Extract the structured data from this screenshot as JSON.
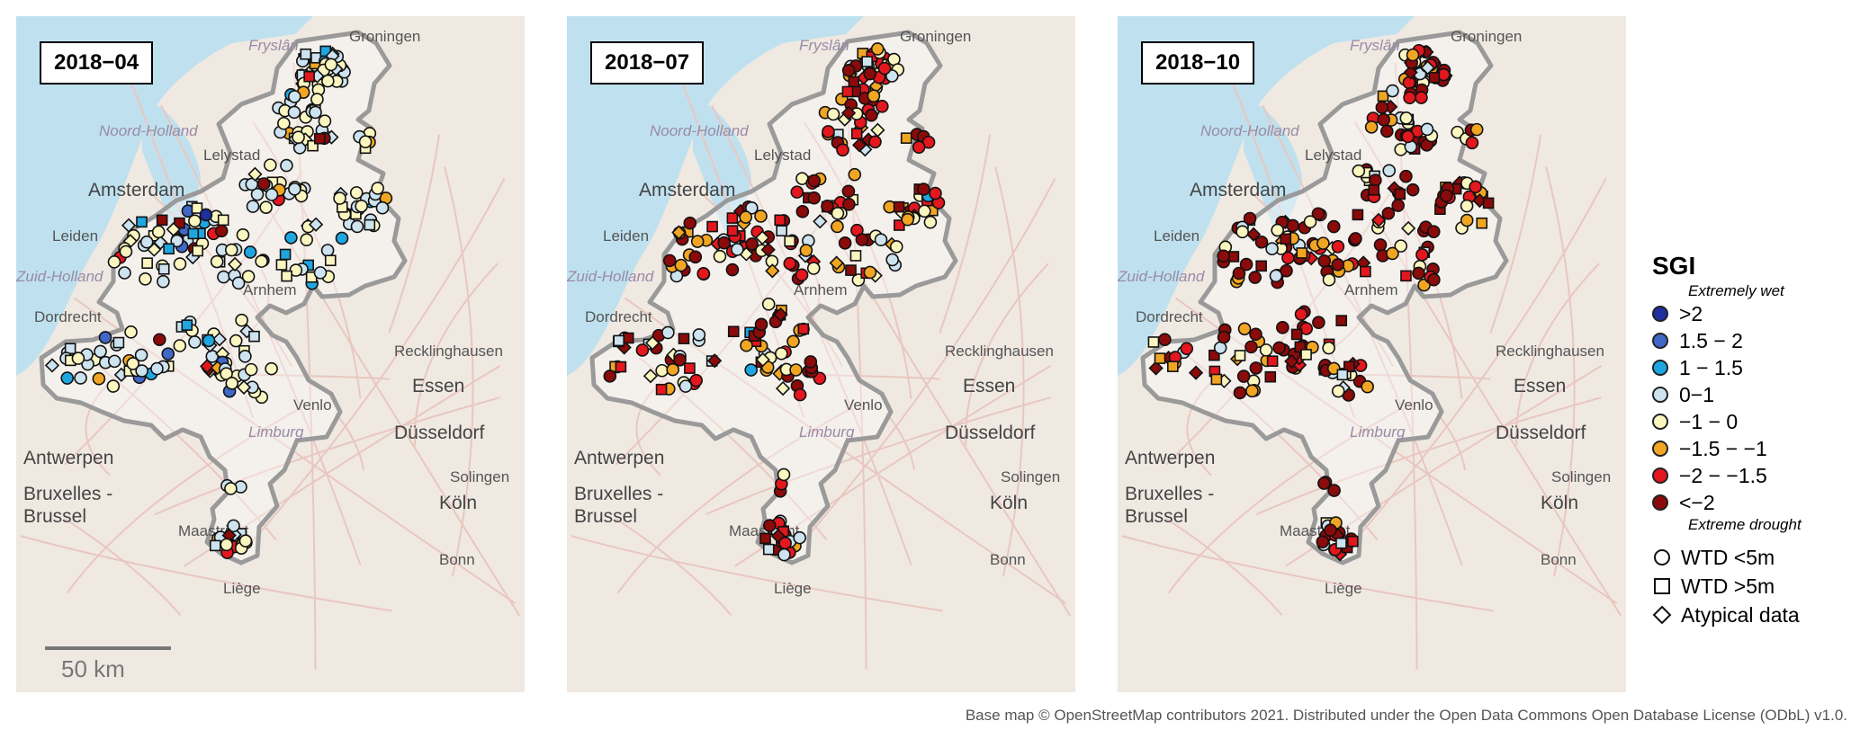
{
  "panels": [
    {
      "date": "2018−04",
      "scale_label": "50 km"
    },
    {
      "date": "2018−07"
    },
    {
      "date": "2018−10"
    }
  ],
  "places": {
    "fryslan": "Fryslân",
    "groningen": "Groningen",
    "noord_holland": "Noord-Holland",
    "lelystad": "Lelystad",
    "amsterdam": "Amsterdam",
    "leiden": "Leiden",
    "zuid_holland": "Zuid-Holland",
    "arnhem": "Arnhem",
    "dordrecht": "Dordrecht",
    "recklinghausen": "Recklinghausen",
    "essen": "Essen",
    "venlo": "Venlo",
    "limburg": "Limburg",
    "dusseldorf": "Düsseldorf",
    "antwerpen": "Antwerpen",
    "bruxelles": "Bruxelles -",
    "brussel": "Brussel",
    "solingen": "Solingen",
    "koln": "Köln",
    "maastricht": "Maastricht",
    "bonn": "Bonn",
    "liege": "Liège"
  },
  "legend": {
    "title": "SGI",
    "wet_note": "Extremely wet",
    "drought_note": "Extreme drought",
    "classes": [
      {
        "label": ">2",
        "color": "#1f2f9e"
      },
      {
        "label": "1.5 − 2",
        "color": "#3f68c7"
      },
      {
        "label": "1 − 1.5",
        "color": "#1ea6e0"
      },
      {
        "label": "0−1",
        "color": "#cde3ef"
      },
      {
        "label": "−1 − 0",
        "color": "#fbf6c0"
      },
      {
        "label": "−1.5 − −1",
        "color": "#f1a623"
      },
      {
        "label": "−2 − −1.5",
        "color": "#e3171e"
      },
      {
        "label": "<−2",
        "color": "#8b0a0a"
      }
    ],
    "symbols": [
      {
        "label": "WTD <5m",
        "shape": "circle"
      },
      {
        "label": "WTD >5m",
        "shape": "square"
      },
      {
        "label": "Atypical data",
        "shape": "diamond"
      }
    ]
  },
  "credit": "Base map © OpenStreetMap contributors 2021. Distributed under the Open Data Commons Open Database License (ODbL) v1.0."
}
